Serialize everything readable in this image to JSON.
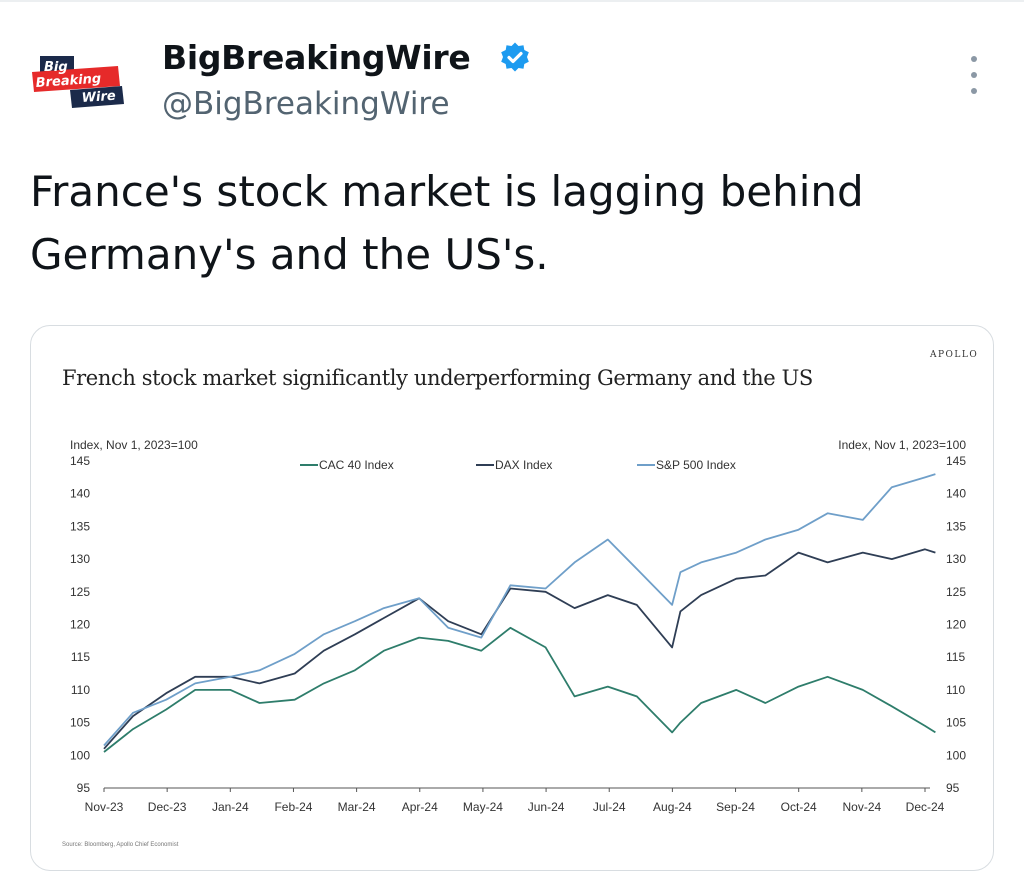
{
  "tweet": {
    "author_name": "BigBreakingWire",
    "author_handle": "@BigBreakingWire",
    "avatar_text": [
      "Big",
      "Breaking",
      "Wire"
    ],
    "text": "France's stock market is lagging behind\nGermany's and the US's."
  },
  "chart_data": {
    "type": "line",
    "brand": "APOLLO",
    "title": "French stock market significantly underperforming Germany and the US",
    "ylabel_left": "Index, Nov 1, 2023=100",
    "ylabel_right": "Index, Nov 1, 2023=100",
    "ylim": [
      95,
      145
    ],
    "yticks": [
      145,
      140,
      135,
      130,
      125,
      120,
      115,
      110,
      105,
      100,
      95
    ],
    "x_tick_labels": [
      "Nov-23",
      "Dec-23",
      "Jan-24",
      "Feb-24",
      "Mar-24",
      "Apr-24",
      "May-24",
      "Jun-24",
      "Jul-24",
      "Aug-24",
      "Sep-24",
      "Oct-24",
      "Nov-24",
      "Dec-24"
    ],
    "grid": false,
    "legend": "top-center",
    "source": "Source: Bloomberg, Apollo Chief Economist",
    "x": [
      "2023-11-01",
      "2023-11-15",
      "2023-12-01",
      "2023-12-15",
      "2024-01-01",
      "2024-01-15",
      "2024-02-01",
      "2024-02-15",
      "2024-03-01",
      "2024-03-15",
      "2024-04-01",
      "2024-04-15",
      "2024-05-01",
      "2024-05-15",
      "2024-06-01",
      "2024-06-15",
      "2024-07-01",
      "2024-07-15",
      "2024-08-01",
      "2024-08-05",
      "2024-08-15",
      "2024-09-01",
      "2024-09-15",
      "2024-10-01",
      "2024-10-15",
      "2024-11-01",
      "2024-11-15",
      "2024-12-01",
      "2024-12-06"
    ],
    "series": [
      {
        "name": "CAC 40 Index",
        "color": "#2e7d6b",
        "values": [
          100.5,
          104,
          107,
          110,
          110,
          108,
          108.5,
          111,
          113,
          116,
          118,
          117.5,
          116,
          119.5,
          116.5,
          109,
          110.5,
          109,
          103.5,
          105,
          108,
          110,
          108,
          110.5,
          112,
          110,
          107.5,
          104.5,
          103.5
        ]
      },
      {
        "name": "DAX Index",
        "color": "#2f3e55",
        "values": [
          101,
          106,
          109.5,
          112,
          112,
          111,
          112.5,
          116,
          118.5,
          121,
          124,
          120.5,
          118.5,
          125.5,
          125,
          122.5,
          124.5,
          123,
          116.5,
          122,
          124.5,
          127,
          127.5,
          131,
          129.5,
          131,
          130,
          131.5,
          131
        ]
      },
      {
        "name": "S&P 500 Index",
        "color": "#6f9fc9",
        "values": [
          101.5,
          106.5,
          108.5,
          111,
          112,
          113,
          115.5,
          118.5,
          120.5,
          122.5,
          124,
          119.5,
          118,
          126,
          125.5,
          129.5,
          133,
          128.5,
          123,
          128,
          129.5,
          131,
          133,
          134.5,
          137,
          136,
          141,
          142.5,
          143
        ]
      }
    ]
  }
}
